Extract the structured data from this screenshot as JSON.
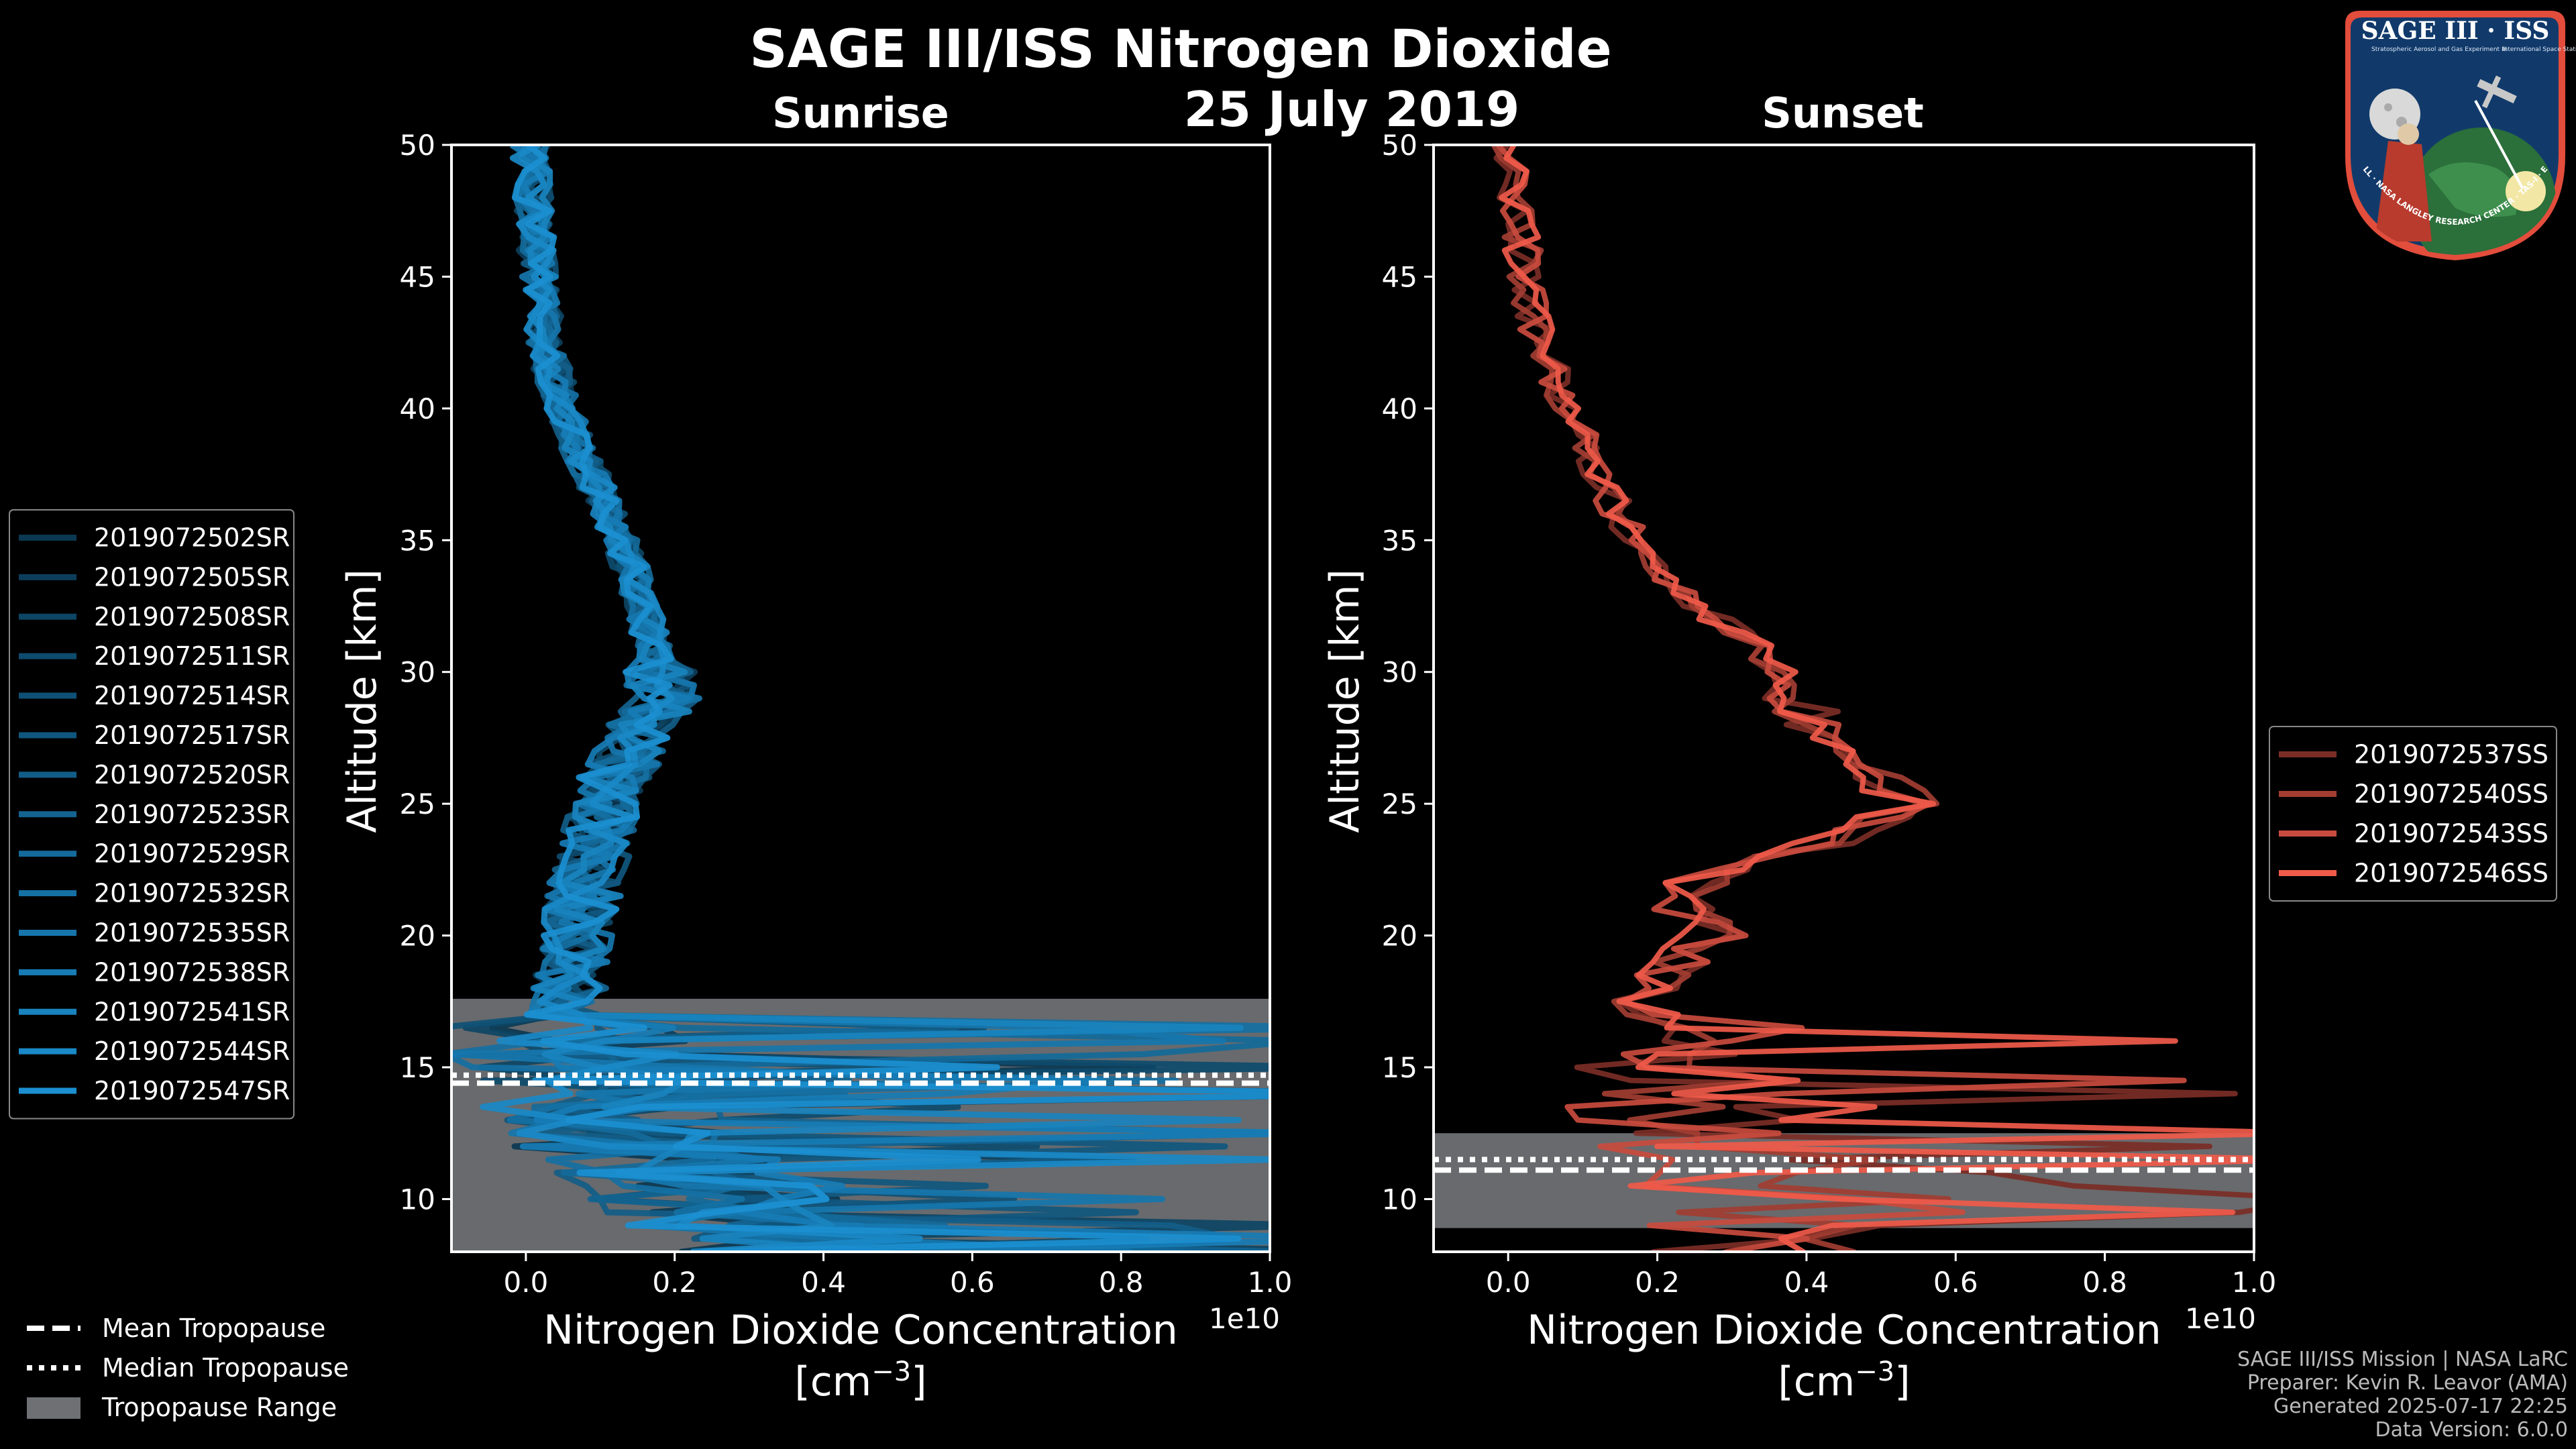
{
  "figure": {
    "title": "SAGE III/ISS Nitrogen Dioxide",
    "date": "25 July 2019"
  },
  "logo": {
    "text": "SAGE III · ISS",
    "ring_text": "BALL · NASA LANGLEY RESEARCH CENTER · TAS-I · ESA",
    "subtitle_left": "Stratospheric Aerosol and Gas Experiment III",
    "subtitle_right": "International Space Station"
  },
  "footer": {
    "line1": "SAGE III/ISS Mission | NASA LaRC",
    "line2": "Preparer: Kevin R. Leavor (AMA)",
    "line3": "Generated 2025-07-17 22:25",
    "line4": "Data Version: 6.0.0"
  },
  "tropopause_legend": {
    "mean": "Mean Tropopause",
    "median": "Median Tropopause",
    "range": "Tropopause Range"
  },
  "colors": {
    "sunrise": "#1b8fd0",
    "sunset": "#f05a4a",
    "tropopause_range": "#6e7073"
  },
  "chart_data": [
    {
      "type": "line",
      "title": "Sunrise",
      "xlabel": "Nitrogen Dioxide Concentration",
      "xlabel_units": "[cm^-3]",
      "x_scale_label": "1e10",
      "ylabel": "Altitude [km]",
      "xlim": [
        -0.1,
        1.0
      ],
      "ylim": [
        8,
        50
      ],
      "xticks": [
        "0.0",
        "0.2",
        "0.4",
        "0.6",
        "0.8",
        "1.0"
      ],
      "yticks": [
        "10",
        "15",
        "20",
        "25",
        "30",
        "35",
        "40",
        "45",
        "50"
      ],
      "tropopause": {
        "mean": 14.4,
        "median": 14.7,
        "range": [
          8,
          17.6
        ]
      },
      "series_names": [
        "2019072502SR",
        "2019072505SR",
        "2019072508SR",
        "2019072511SR",
        "2019072514SR",
        "2019072517SR",
        "2019072520SR",
        "2019072523SR",
        "2019072529SR",
        "2019072532SR",
        "2019072535SR",
        "2019072538SR",
        "2019072541SR",
        "2019072544SR",
        "2019072547SR"
      ],
      "mean_profile": {
        "altitude": [
          50,
          48,
          46,
          44,
          42,
          40,
          38,
          36,
          34,
          32,
          30,
          29,
          28,
          26,
          24,
          22,
          20,
          18,
          17,
          16,
          15,
          14,
          13,
          12,
          11,
          10,
          9,
          8
        ],
        "value": [
          0.005,
          0.01,
          0.015,
          0.02,
          0.03,
          0.05,
          0.08,
          0.11,
          0.14,
          0.16,
          0.18,
          0.19,
          0.16,
          0.12,
          0.1,
          0.08,
          0.07,
          0.06,
          0.05,
          0.05,
          0.07,
          0.1,
          0.12,
          0.15,
          0.2,
          0.25,
          0.3,
          0.35
        ]
      },
      "legend_loc": "left"
    },
    {
      "type": "line",
      "title": "Sunset",
      "xlabel": "Nitrogen Dioxide Concentration",
      "xlabel_units": "[cm^-3]",
      "x_scale_label": "1e10",
      "ylabel": "Altitude [km]",
      "xlim": [
        -0.1,
        1.0
      ],
      "ylim": [
        8,
        50
      ],
      "xticks": [
        "0.0",
        "0.2",
        "0.4",
        "0.6",
        "0.8",
        "1.0"
      ],
      "yticks": [
        "10",
        "15",
        "20",
        "25",
        "30",
        "35",
        "40",
        "45",
        "50"
      ],
      "tropopause": {
        "mean": 11.1,
        "median": 11.5,
        "range": [
          8.9,
          12.5
        ]
      },
      "series_names": [
        "2019072537SS",
        "2019072540SS",
        "2019072543SS",
        "2019072546SS"
      ],
      "mean_profile": {
        "altitude": [
          50,
          48,
          46,
          44,
          42,
          40,
          38,
          36,
          34,
          32,
          31,
          30,
          28,
          26,
          25,
          24,
          23,
          22,
          21,
          20,
          19,
          18,
          17,
          16,
          15,
          14,
          13,
          12,
          11,
          10
        ],
        "value": [
          0.0,
          0.01,
          0.02,
          0.03,
          0.05,
          0.08,
          0.11,
          0.15,
          0.2,
          0.28,
          0.34,
          0.36,
          0.42,
          0.5,
          0.53,
          0.48,
          0.36,
          0.25,
          0.23,
          0.27,
          0.22,
          0.18,
          0.2,
          0.25,
          0.22,
          0.23,
          0.24,
          0.25,
          0.3,
          0.35
        ]
      },
      "legend_loc": "right"
    }
  ]
}
